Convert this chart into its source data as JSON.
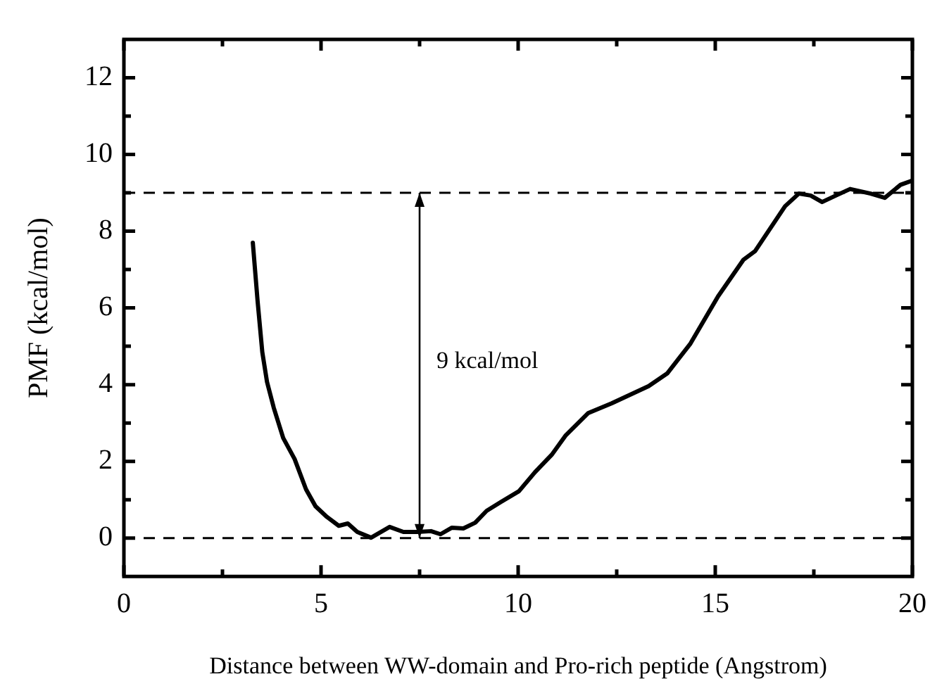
{
  "chart_data": {
    "type": "line",
    "xlabel": "Distance between WW-domain and Pro-rich peptide (Angstrom)",
    "ylabel": "PMF (kcal/mol)",
    "xlim": [
      0,
      20
    ],
    "xticks": [
      0,
      5,
      10,
      15,
      20
    ],
    "ylim": [
      -1,
      13
    ],
    "yticks": [
      0,
      2,
      4,
      6,
      8,
      10,
      12
    ],
    "grid": false,
    "legend": false,
    "marker": "none",
    "line_style": "solid",
    "series": [
      {
        "color": "#000000",
        "x": [
          3.27,
          3.39,
          3.51,
          3.63,
          3.8,
          4.04,
          4.33,
          4.62,
          4.86,
          5.15,
          5.45,
          5.68,
          5.92,
          6.27,
          6.74,
          7.09,
          7.44,
          7.79,
          8.03,
          8.32,
          8.61,
          8.91,
          9.2,
          9.56,
          10.02,
          10.43,
          10.85,
          11.2,
          11.78,
          12.37,
          13.31,
          13.78,
          14.37,
          15.07,
          15.71,
          16.01,
          16.77,
          17.12,
          17.42,
          17.71,
          18.06,
          18.42,
          18.94,
          19.3,
          19.7,
          20
        ],
        "values": [
          7.7,
          6.19,
          4.85,
          4.07,
          3.4,
          2.61,
          2.06,
          1.27,
          0.83,
          0.55,
          0.32,
          0.38,
          0.16,
          0.01,
          0.29,
          0.16,
          0.16,
          0.18,
          0.1,
          0.27,
          0.25,
          0.4,
          0.71,
          0.94,
          1.22,
          1.72,
          2.17,
          2.67,
          3.26,
          3.51,
          3.96,
          4.29,
          5.07,
          6.3,
          7.25,
          7.48,
          8.65,
          8.98,
          8.93,
          8.76,
          8.93,
          9.1,
          8.98,
          8.87,
          9.21,
          9.32
        ]
      }
    ],
    "ref_lines": [
      {
        "axis": "y",
        "value": 0,
        "color": "#000000",
        "line_style": "dashed"
      },
      {
        "axis": "y",
        "value": 9,
        "color": "#000000",
        "line_style": "dashed"
      }
    ],
    "annotations": [
      "9 kcal/mol"
    ]
  }
}
